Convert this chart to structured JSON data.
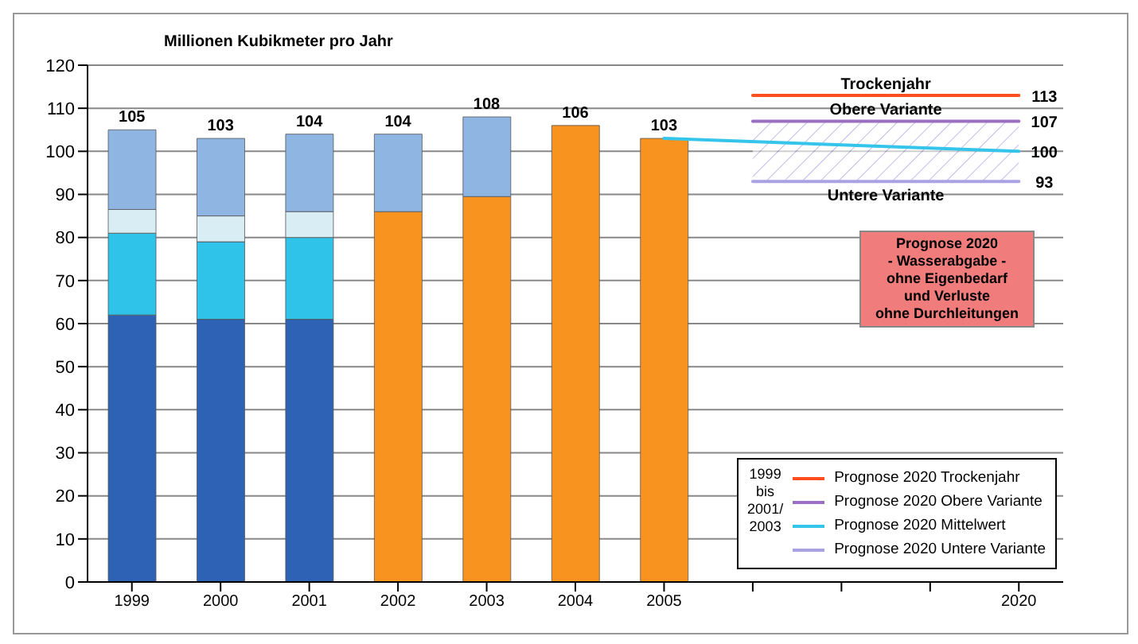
{
  "chart_data": {
    "type": "bar",
    "ylabel": "Millionen Kubikmeter pro Jahr",
    "categories": [
      "1999",
      "2000",
      "2001",
      "2002",
      "2003",
      "2004",
      "2005",
      null,
      null,
      null,
      "2020"
    ],
    "stacked": true,
    "series": [
      {
        "color": "#2e62b5",
        "values": [
          62,
          61,
          61,
          null,
          null,
          null,
          null,
          null,
          null,
          null,
          null
        ]
      },
      {
        "color": "#2fc3ea",
        "values": [
          19,
          18,
          19,
          null,
          null,
          null,
          null,
          null,
          null,
          null,
          null
        ]
      },
      {
        "color": "#d8eef4",
        "values": [
          5.5,
          6,
          6,
          null,
          null,
          null,
          null,
          null,
          null,
          null,
          null
        ]
      },
      {
        "color": "#f7931e",
        "values": [
          null,
          null,
          null,
          86,
          89.5,
          106,
          103,
          null,
          null,
          null,
          null
        ]
      },
      {
        "color": "#8fb6e3",
        "values": [
          18.5,
          18,
          18,
          18,
          18.5,
          null,
          null,
          null,
          null,
          null,
          null
        ]
      },
      {
        "type": "line",
        "name": "Prognose 2020 Trockenjahr",
        "color": "#ff4f1f",
        "values": [
          null,
          null,
          null,
          null,
          null,
          null,
          null,
          113,
          113,
          113,
          113
        ],
        "value_labels": [
          null,
          null,
          null,
          null,
          null,
          null,
          null,
          null,
          null,
          null,
          "113"
        ]
      },
      {
        "type": "line",
        "name": "Prognose 2020 Obere Variante",
        "color": "#9b6fc2",
        "values": [
          null,
          null,
          null,
          null,
          null,
          null,
          null,
          107,
          107,
          107,
          107
        ],
        "value_labels": [
          null,
          null,
          null,
          null,
          null,
          null,
          null,
          null,
          null,
          null,
          "107"
        ]
      },
      {
        "type": "line",
        "name": "Prognose 2020 Mittelwert",
        "color": "#35c4ea",
        "values": [
          null,
          null,
          null,
          null,
          null,
          null,
          103,
          null,
          null,
          null,
          100
        ],
        "lower": [
          null,
          null,
          null,
          null,
          null,
          null,
          null,
          93,
          null,
          null,
          93
        ],
        "upper": [
          null,
          null,
          null,
          null,
          null,
          null,
          null,
          107,
          null,
          null,
          107
        ],
        "value_labels": [
          null,
          null,
          null,
          null,
          null,
          null,
          null,
          null,
          null,
          null,
          "100"
        ]
      },
      {
        "type": "line",
        "name": "Prognose 2020 Untere Variante",
        "color": "#a9a3e3",
        "values": [
          null,
          null,
          null,
          null,
          null,
          null,
          null,
          93,
          93,
          93,
          93
        ],
        "value_labels": [
          null,
          null,
          null,
          null,
          null,
          null,
          null,
          null,
          null,
          null,
          "93"
        ]
      }
    ],
    "totals": [
      "105",
      "103",
      "104",
      "104",
      "108",
      "106",
      "103",
      null,
      null,
      null,
      null
    ],
    "ylim": [
      0,
      120
    ],
    "yticks": [
      0,
      10,
      20,
      30,
      40,
      50,
      60,
      70,
      80,
      90,
      100,
      110,
      120
    ],
    "grid": "y",
    "legend": "bottom right",
    "annotations": [
      "Prognose 2020\n- Wasserabgabe -\nohne Eigenbedarf\nund Verluste\nohne Durchleitungen",
      "1999\nbis\n2001/\n2003",
      "Trockenjahr",
      "Obere Variante",
      "Untere Variante"
    ]
  }
}
